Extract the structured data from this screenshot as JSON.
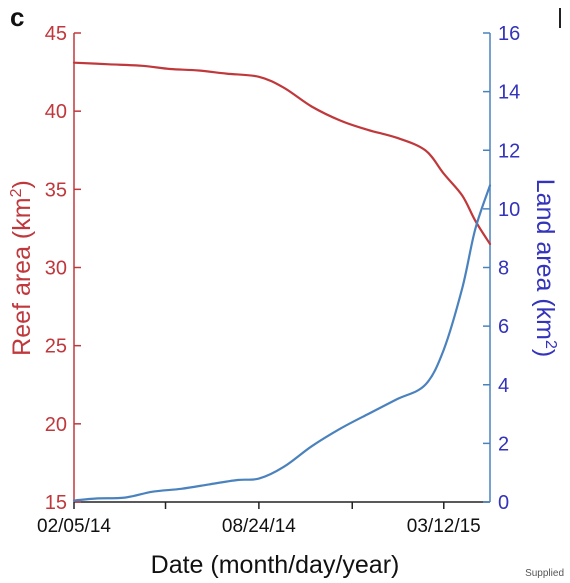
{
  "panel_label": "c",
  "credit": "Supplied",
  "chart_data": {
    "type": "line",
    "xlabel": "Date (month/day/year)",
    "x_ticks": [
      "02/05/14",
      "08/24/14",
      "03/12/15"
    ],
    "x_range": [
      "2014-02-05",
      "2015-05-01"
    ],
    "y_left": {
      "label": "Reef area (km",
      "label_sup": "2",
      "label_tail": ")",
      "range": [
        15,
        45
      ],
      "ticks": [
        15,
        20,
        25,
        30,
        35,
        40,
        45
      ],
      "color": "#c0383c"
    },
    "y_right": {
      "label": "Land area (km",
      "label_sup": "2",
      "label_tail": ")",
      "range": [
        0,
        16
      ],
      "ticks": [
        0,
        2,
        4,
        6,
        8,
        10,
        12,
        14,
        16
      ],
      "color": "#3333bb"
    },
    "grid": false,
    "legend": "none",
    "series": [
      {
        "axis": "left",
        "color": "#c0383c",
        "points": [
          [
            "2014-02-05",
            43.1
          ],
          [
            "2014-03-15",
            43.0
          ],
          [
            "2014-04-20",
            42.9
          ],
          [
            "2014-05-20",
            42.7
          ],
          [
            "2014-06-20",
            42.6
          ],
          [
            "2014-07-20",
            42.4
          ],
          [
            "2014-08-24",
            42.2
          ],
          [
            "2014-09-20",
            41.5
          ],
          [
            "2014-10-20",
            40.3
          ],
          [
            "2014-11-20",
            39.4
          ],
          [
            "2014-12-20",
            38.8
          ],
          [
            "2015-01-20",
            38.3
          ],
          [
            "2015-02-20",
            37.5
          ],
          [
            "2015-03-12",
            36.0
          ],
          [
            "2015-04-01",
            34.6
          ],
          [
            "2015-04-15",
            33.0
          ],
          [
            "2015-05-01",
            31.5
          ]
        ]
      },
      {
        "axis": "right",
        "color": "#4a82be",
        "points": [
          [
            "2014-02-05",
            0.05
          ],
          [
            "2014-03-01",
            0.12
          ],
          [
            "2014-04-01",
            0.15
          ],
          [
            "2014-05-01",
            0.35
          ],
          [
            "2014-06-01",
            0.45
          ],
          [
            "2014-07-01",
            0.6
          ],
          [
            "2014-08-01",
            0.75
          ],
          [
            "2014-08-24",
            0.8
          ],
          [
            "2014-09-20",
            1.2
          ],
          [
            "2014-10-20",
            1.9
          ],
          [
            "2014-11-20",
            2.5
          ],
          [
            "2014-12-20",
            3.0
          ],
          [
            "2015-01-20",
            3.5
          ],
          [
            "2015-02-20",
            4.0
          ],
          [
            "2015-03-12",
            5.2
          ],
          [
            "2015-04-01",
            7.3
          ],
          [
            "2015-04-15",
            9.3
          ],
          [
            "2015-05-01",
            10.8
          ]
        ]
      }
    ]
  }
}
